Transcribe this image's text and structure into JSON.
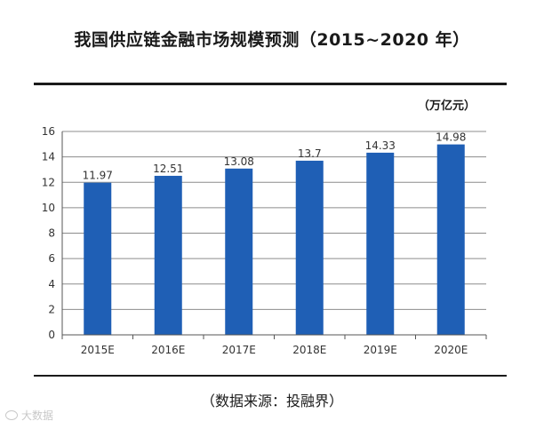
{
  "title": "我国供应链金融市场规模预测（2015~2020 年）",
  "unit_label": "（万亿元）",
  "source_label": "（数据来源：投融界）",
  "watermark": "大数据",
  "colors": {
    "bar": "#1f5fb5",
    "grid": "#8c8c8c",
    "axis": "#555555",
    "text": "#333333"
  },
  "chart_data": {
    "type": "bar",
    "categories": [
      "2015E",
      "2016E",
      "2017E",
      "2018E",
      "2019E",
      "2020E"
    ],
    "values": [
      11.97,
      12.51,
      13.08,
      13.7,
      14.33,
      14.98
    ],
    "value_labels": [
      "11.97",
      "12.51",
      "13.08",
      "13.7",
      "14.33",
      "14.98"
    ],
    "title": "我国供应链金融市场规模预测（2015~2020 年）",
    "xlabel": "",
    "ylabel": "",
    "ylim": [
      0,
      16
    ],
    "yticks": [
      0,
      2,
      4,
      6,
      8,
      10,
      12,
      14,
      16
    ],
    "grid": true
  }
}
